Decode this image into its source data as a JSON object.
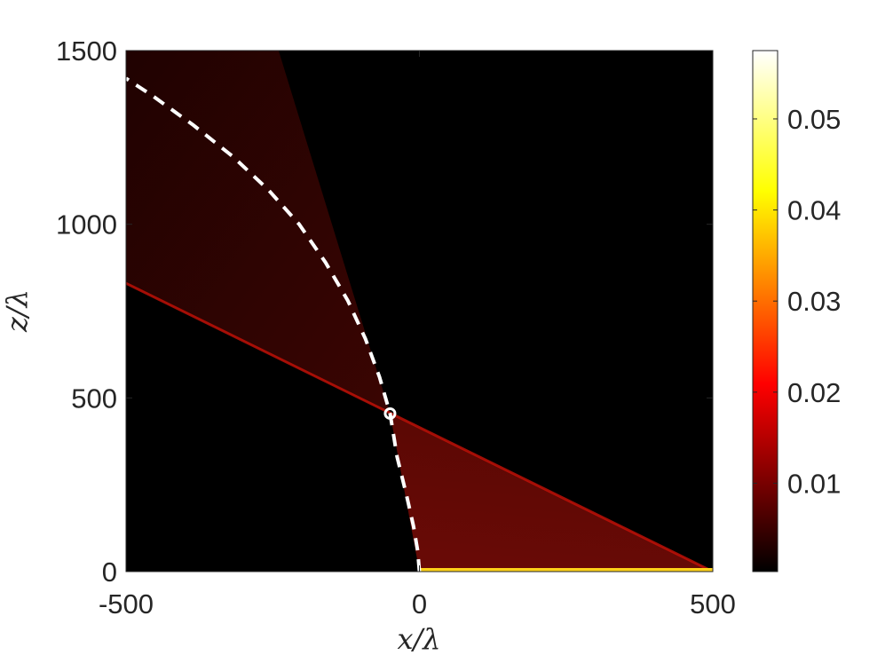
{
  "chart_data": {
    "type": "heatmap",
    "title": "",
    "xlabel": "x/λ",
    "ylabel": "z/λ",
    "xlim": [
      -500,
      500
    ],
    "ylim": [
      0,
      1500
    ],
    "x_ticks": [
      -500,
      0,
      500
    ],
    "y_ticks": [
      0,
      500,
      1000,
      1500
    ],
    "x_tick_labels": [
      "-500",
      "0",
      "500"
    ],
    "y_tick_labels": [
      "0",
      "500",
      "1000",
      "1500"
    ],
    "colormap": "hot",
    "colorbar": {
      "range": [
        0.0003,
        0.0575
      ],
      "ticks": [
        0.01,
        0.02,
        0.03,
        0.04,
        0.05
      ],
      "tick_labels": [
        "0.01",
        "0.02",
        "0.03",
        "0.04",
        "0.05"
      ],
      "placement": "right"
    },
    "intensity_regions": {
      "source_line": {
        "x_range": [
          0,
          500
        ],
        "z": 0,
        "value": 0.05
      },
      "beam_wedge": {
        "vertices": [
          [
            0,
            0
          ],
          [
            500,
            0
          ],
          [
            -50,
            455
          ]
        ],
        "value": 0.012
      },
      "diverging_cone": {
        "vertices": [
          [
            -50,
            455
          ],
          [
            -500,
            830
          ],
          [
            -500,
            1500
          ],
          [
            -240,
            1500
          ]
        ],
        "value": 0.004
      },
      "focus_edge_line": {
        "from": [
          500,
          0
        ],
        "to": [
          -500,
          830
        ],
        "value": 0.02
      }
    },
    "series": [
      {
        "type": "dashed-curve",
        "color": "#ffffff",
        "x": [
          0,
          -3,
          -10,
          -22,
          -38,
          -50,
          -68,
          -92,
          -122,
          -160,
          -205,
          -258,
          -318,
          -385,
          -455,
          -500
        ],
        "y": [
          0,
          60,
          130,
          220,
          330,
          455,
          560,
          670,
          780,
          890,
          1000,
          1100,
          1195,
          1285,
          1370,
          1420
        ]
      }
    ],
    "markers": [
      {
        "shape": "circle",
        "x": -50,
        "y": 455,
        "color": "#ffffff"
      }
    ],
    "grid": false
  }
}
